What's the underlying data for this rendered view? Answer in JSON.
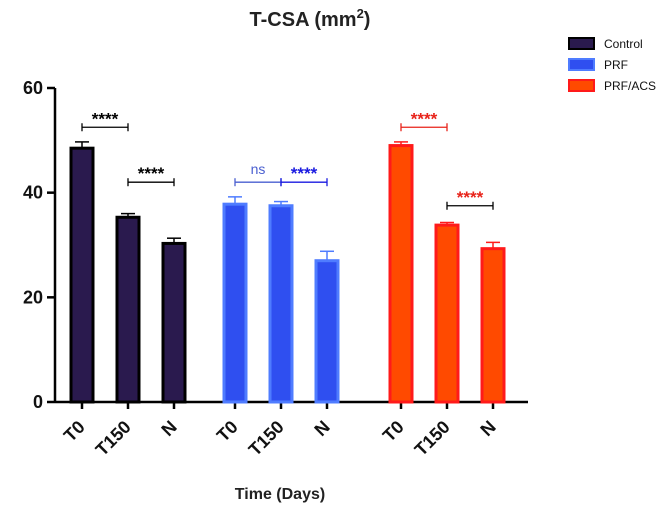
{
  "chart_data": {
    "type": "bar",
    "title": "T-CSA (mm",
    "title_superscript": "2",
    "title_close": ")",
    "xlabel": "Time (Days)",
    "ylabel": "",
    "ylim": [
      0,
      60
    ],
    "yticks": [
      0,
      20,
      40,
      60
    ],
    "categories": [
      "T0",
      "T150",
      "N"
    ],
    "series": [
      {
        "name": "Control",
        "fill": "#2a1a4e",
        "edge": "#000000",
        "values": [
          48.5,
          35.3,
          30.3
        ],
        "errors": [
          1.2,
          0.7,
          1.0
        ]
      },
      {
        "name": "PRF",
        "fill": "#2f4ff0",
        "edge": "#4f7cff",
        "values": [
          37.8,
          37.5,
          27.0
        ],
        "errors": [
          1.4,
          0.8,
          1.8
        ]
      },
      {
        "name": "PRF/ACS",
        "fill": "#ff4a00",
        "edge": "#ff1a1a",
        "values": [
          49.0,
          33.8,
          29.3
        ],
        "errors": [
          0.7,
          0.5,
          1.2
        ]
      }
    ],
    "significance": [
      {
        "series": 0,
        "from": 0,
        "to": 1,
        "y": 52.5,
        "label": "****",
        "line_color": "#000000",
        "text_color": "#000000"
      },
      {
        "series": 0,
        "from": 1,
        "to": 2,
        "y": 42.0,
        "label": "****",
        "line_color": "#000000",
        "text_color": "#000000"
      },
      {
        "series": 1,
        "from": 0,
        "to": 1,
        "y": 42.0,
        "label": "ns",
        "line_color": "#4a5fd0",
        "text_color": "#4a5fd0"
      },
      {
        "series": 1,
        "from": 1,
        "to": 2,
        "y": 42.0,
        "label": "****",
        "line_color": "#1a1ae0",
        "text_color": "#1a1ae0"
      },
      {
        "series": 2,
        "from": 0,
        "to": 1,
        "y": 52.5,
        "label": "****",
        "line_color": "#e8231a",
        "text_color": "#e8231a"
      },
      {
        "series": 2,
        "from": 1,
        "to": 2,
        "y": 37.5,
        "label": "****",
        "line_color": "#000000",
        "text_color": "#e8231a"
      }
    ]
  }
}
